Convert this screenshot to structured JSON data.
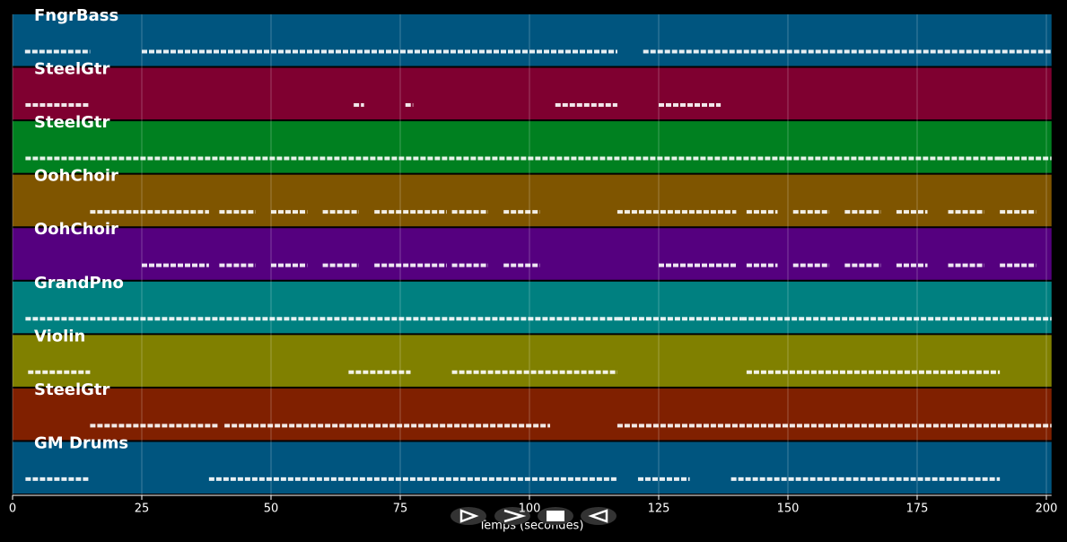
{
  "chart_data": {
    "type": "pianoroll",
    "x_label": "Temps (secondes)",
    "xlim": [
      0,
      201
    ],
    "xticks": [
      0,
      25,
      50,
      75,
      100,
      125,
      150,
      175,
      200
    ],
    "grid": true,
    "tracks": [
      {
        "name": "FngrBass",
        "color": "#00557f",
        "segments": [
          [
            2.4,
            15
          ],
          [
            25,
            117
          ],
          [
            122,
            201
          ]
        ]
      },
      {
        "name": "SteelGtr",
        "color": "#7f0030",
        "segments": [
          [
            2.5,
            15
          ],
          [
            66,
            68
          ],
          [
            76,
            77.5
          ],
          [
            105,
            117
          ],
          [
            125,
            137
          ]
        ]
      },
      {
        "name": "SteelGtr",
        "color": "#008020",
        "segments": [
          [
            2.5,
            191
          ],
          [
            191,
            201
          ]
        ]
      },
      {
        "name": "OohChoir",
        "color": "#7f5500",
        "segments": [
          [
            15,
            38
          ],
          [
            40,
            47
          ],
          [
            50,
            57
          ],
          [
            60,
            67
          ],
          [
            70,
            84
          ],
          [
            85,
            92
          ],
          [
            95,
            102
          ],
          [
            117,
            140
          ],
          [
            142,
            148
          ],
          [
            151,
            158
          ],
          [
            161,
            168
          ],
          [
            171,
            177
          ],
          [
            181,
            188
          ],
          [
            191,
            198
          ]
        ]
      },
      {
        "name": "OohChoir",
        "color": "#55007f",
        "segments": [
          [
            25,
            38
          ],
          [
            40,
            47
          ],
          [
            50,
            57
          ],
          [
            60,
            67
          ],
          [
            70,
            84
          ],
          [
            85,
            92
          ],
          [
            95,
            102
          ],
          [
            125,
            140
          ],
          [
            142,
            148
          ],
          [
            151,
            158
          ],
          [
            161,
            168
          ],
          [
            171,
            177
          ],
          [
            181,
            188
          ],
          [
            191,
            198
          ]
        ]
      },
      {
        "name": "GrandPno",
        "color": "#008080",
        "segments": [
          [
            2.5,
            117
          ],
          [
            117,
            141
          ],
          [
            141,
            191
          ],
          [
            191,
            201
          ]
        ]
      },
      {
        "name": "Violin",
        "color": "#808000",
        "segments": [
          [
            3,
            15
          ],
          [
            65,
            77
          ],
          [
            85,
            117
          ],
          [
            142,
            191
          ]
        ]
      },
      {
        "name": "SteelGtr",
        "color": "#802000",
        "segments": [
          [
            15,
            40
          ],
          [
            41,
            104
          ],
          [
            117,
            191
          ],
          [
            191,
            201
          ]
        ]
      },
      {
        "name": "GM Drums",
        "color": "#00557f",
        "segments": [
          [
            2.5,
            15
          ],
          [
            38,
            117
          ],
          [
            121,
            131
          ],
          [
            139,
            191
          ]
        ]
      }
    ]
  }
}
